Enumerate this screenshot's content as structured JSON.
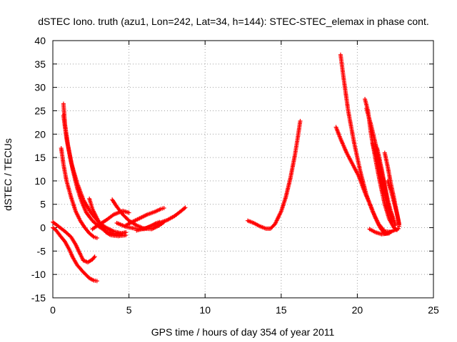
{
  "chart_data": {
    "type": "scatter",
    "title": "dSTEC Iono. truth (azu1, Lon=242, Lat=34, h=144): STEC-STEC_elemax in phase cont.",
    "xlabel": "GPS time / hours of day 354 of year 2011",
    "ylabel": "dSTEC  / TECUs",
    "xlim": [
      0,
      25
    ],
    "ylim": [
      -15,
      40
    ],
    "xticks": [
      0,
      5,
      10,
      15,
      20,
      25
    ],
    "yticks": [
      -15,
      -10,
      -5,
      0,
      5,
      10,
      15,
      20,
      25,
      30,
      35,
      40
    ],
    "xtick_labels": [
      "0",
      "5",
      "10",
      "15",
      "20",
      "25"
    ],
    "ytick_labels": [
      "-15",
      "-10",
      "-5",
      "0",
      "5",
      "10",
      "15",
      "20",
      "25",
      "30",
      "35",
      "40"
    ],
    "grid": true,
    "marker": "plus",
    "color": "#ff0000",
    "series": [
      {
        "values": [
          [
            0.0,
            1.2
          ],
          [
            0.4,
            0.2
          ],
          [
            0.8,
            -0.8
          ],
          [
            1.2,
            -2.0
          ],
          [
            1.5,
            -3.6
          ],
          [
            1.7,
            -5.0
          ],
          [
            2.0,
            -7.0
          ],
          [
            2.3,
            -7.4
          ],
          [
            2.6,
            -6.8
          ],
          [
            2.75,
            -6.2
          ]
        ]
      },
      {
        "values": [
          [
            0.0,
            0.0
          ],
          [
            0.2,
            -0.5
          ],
          [
            0.5,
            -1.8
          ],
          [
            0.8,
            -3.0
          ],
          [
            1.1,
            -4.8
          ],
          [
            1.3,
            -6.3
          ],
          [
            1.6,
            -8.0
          ],
          [
            2.0,
            -9.5
          ],
          [
            2.4,
            -10.8
          ],
          [
            2.7,
            -11.3
          ],
          [
            2.9,
            -11.4
          ]
        ]
      },
      {
        "values": [
          [
            0.7,
            26.5
          ],
          [
            0.8,
            22.0
          ],
          [
            1.0,
            17.5
          ],
          [
            1.3,
            12.5
          ],
          [
            1.6,
            8.5
          ],
          [
            1.9,
            5.5
          ],
          [
            2.2,
            3.2
          ],
          [
            2.6,
            1.5
          ],
          [
            3.0,
            0.3
          ],
          [
            3.5,
            -0.8
          ],
          [
            4.0,
            -1.3
          ],
          [
            4.5,
            -1.2
          ],
          [
            4.8,
            -1.0
          ]
        ]
      },
      {
        "values": [
          [
            0.55,
            17.0
          ],
          [
            0.7,
            13.5
          ],
          [
            0.9,
            10.0
          ],
          [
            1.2,
            6.5
          ],
          [
            1.5,
            3.5
          ],
          [
            1.8,
            1.5
          ],
          [
            2.1,
            0.0
          ],
          [
            2.4,
            -1.2
          ],
          [
            2.7,
            -2.0
          ],
          [
            2.9,
            -2.2
          ]
        ]
      },
      {
        "values": [
          [
            0.7,
            24.0
          ],
          [
            0.9,
            19.0
          ],
          [
            1.2,
            14.0
          ],
          [
            1.6,
            9.5
          ],
          [
            2.0,
            6.0
          ],
          [
            2.5,
            3.2
          ],
          [
            3.0,
            1.2
          ],
          [
            3.5,
            0.0
          ],
          [
            4.0,
            -0.8
          ],
          [
            4.5,
            -1.2
          ]
        ]
      },
      {
        "values": [
          [
            2.4,
            6.2
          ],
          [
            2.6,
            4.0
          ],
          [
            2.9,
            2.0
          ],
          [
            3.2,
            0.3
          ],
          [
            3.5,
            -1.0
          ],
          [
            3.8,
            -1.6
          ],
          [
            4.3,
            -1.8
          ],
          [
            4.8,
            -1.6
          ]
        ]
      },
      {
        "values": [
          [
            2.6,
            -0.3
          ],
          [
            3.0,
            0.6
          ],
          [
            3.5,
            1.6
          ],
          [
            4.0,
            2.8
          ],
          [
            4.6,
            3.6
          ],
          [
            5.0,
            3.2
          ]
        ]
      },
      {
        "values": [
          [
            3.9,
            6.0
          ],
          [
            4.2,
            4.5
          ],
          [
            4.6,
            2.8
          ],
          [
            5.0,
            1.5
          ],
          [
            5.5,
            0.5
          ],
          [
            6.0,
            -0.2
          ],
          [
            6.5,
            -0.3
          ],
          [
            7.0,
            0.5
          ],
          [
            7.3,
            1.2
          ]
        ]
      },
      {
        "values": [
          [
            4.2,
            1.0
          ],
          [
            4.8,
            0.2
          ],
          [
            5.4,
            -0.2
          ],
          [
            6.0,
            -0.3
          ],
          [
            6.4,
            0.3
          ],
          [
            6.8,
            1.0
          ],
          [
            7.0,
            1.2
          ]
        ]
      },
      {
        "values": [
          [
            4.8,
            0.5
          ],
          [
            5.2,
            1.2
          ],
          [
            5.7,
            2.0
          ],
          [
            6.2,
            2.8
          ],
          [
            6.7,
            3.4
          ],
          [
            7.1,
            4.0
          ],
          [
            7.3,
            4.2
          ]
        ]
      },
      {
        "values": [
          [
            5.5,
            -0.6
          ],
          [
            6.2,
            0.0
          ],
          [
            6.8,
            0.8
          ],
          [
            7.5,
            1.6
          ],
          [
            8.0,
            2.5
          ],
          [
            8.4,
            3.5
          ],
          [
            8.7,
            4.3
          ]
        ]
      },
      {
        "values": [
          [
            12.8,
            1.5
          ],
          [
            13.2,
            1.0
          ],
          [
            13.6,
            0.3
          ],
          [
            14.0,
            -0.2
          ],
          [
            14.3,
            -0.2
          ],
          [
            14.6,
            0.8
          ],
          [
            15.0,
            3.5
          ],
          [
            15.3,
            6.5
          ],
          [
            15.6,
            10.5
          ],
          [
            15.9,
            15.5
          ],
          [
            16.1,
            19.5
          ],
          [
            16.25,
            22.8
          ]
        ]
      },
      {
        "values": [
          [
            18.6,
            21.5
          ],
          [
            18.9,
            19.0
          ],
          [
            19.3,
            16.0
          ],
          [
            19.7,
            13.5
          ],
          [
            20.1,
            11.0
          ],
          [
            20.5,
            7.5
          ],
          [
            20.9,
            4.5
          ],
          [
            21.2,
            2.0
          ],
          [
            21.5,
            0.0
          ],
          [
            21.8,
            -1.3
          ],
          [
            22.1,
            -1.2
          ]
        ]
      },
      {
        "values": [
          [
            18.9,
            37.0
          ],
          [
            19.1,
            32.0
          ],
          [
            19.4,
            25.0
          ],
          [
            19.8,
            18.0
          ],
          [
            20.2,
            12.0
          ],
          [
            20.6,
            7.0
          ],
          [
            21.0,
            3.5
          ],
          [
            21.4,
            0.8
          ],
          [
            21.8,
            -0.8
          ],
          [
            22.2,
            -0.9
          ]
        ]
      },
      {
        "values": [
          [
            20.5,
            27.5
          ],
          [
            20.7,
            25.0
          ],
          [
            20.9,
            20.0
          ],
          [
            21.2,
            14.5
          ],
          [
            21.5,
            9.5
          ],
          [
            21.8,
            5.0
          ],
          [
            22.1,
            1.8
          ],
          [
            22.4,
            0.0
          ],
          [
            22.6,
            -0.5
          ]
        ]
      },
      {
        "values": [
          [
            20.6,
            25.5
          ],
          [
            20.9,
            22.0
          ],
          [
            21.3,
            16.5
          ],
          [
            21.6,
            12.0
          ],
          [
            21.9,
            7.0
          ],
          [
            22.1,
            3.5
          ],
          [
            22.3,
            1.0
          ]
        ]
      },
      {
        "values": [
          [
            21.0,
            18.0
          ],
          [
            21.3,
            14.5
          ],
          [
            21.5,
            11.0
          ],
          [
            21.8,
            7.5
          ],
          [
            22.0,
            5.0
          ],
          [
            22.3,
            2.5
          ],
          [
            22.5,
            0.5
          ]
        ]
      },
      {
        "values": [
          [
            21.3,
            17.0
          ],
          [
            21.6,
            12.5
          ],
          [
            21.8,
            9.0
          ],
          [
            22.0,
            6.0
          ],
          [
            22.2,
            3.5
          ],
          [
            22.4,
            1.5
          ]
        ]
      },
      {
        "values": [
          [
            21.8,
            16.0
          ],
          [
            22.0,
            13.0
          ],
          [
            22.2,
            9.5
          ],
          [
            22.4,
            6.5
          ],
          [
            22.55,
            4.0
          ],
          [
            22.7,
            1.5
          ],
          [
            22.75,
            0.3
          ]
        ]
      },
      {
        "values": [
          [
            22.0,
            10.0
          ],
          [
            22.2,
            8.0
          ],
          [
            22.4,
            5.5
          ],
          [
            22.6,
            3.0
          ],
          [
            22.75,
            0.8
          ]
        ]
      },
      {
        "values": [
          [
            20.8,
            -0.3
          ],
          [
            21.2,
            -1.0
          ],
          [
            21.6,
            -1.4
          ],
          [
            22.0,
            -1.2
          ],
          [
            22.4,
            -0.6
          ],
          [
            22.7,
            -0.2
          ]
        ]
      }
    ]
  }
}
